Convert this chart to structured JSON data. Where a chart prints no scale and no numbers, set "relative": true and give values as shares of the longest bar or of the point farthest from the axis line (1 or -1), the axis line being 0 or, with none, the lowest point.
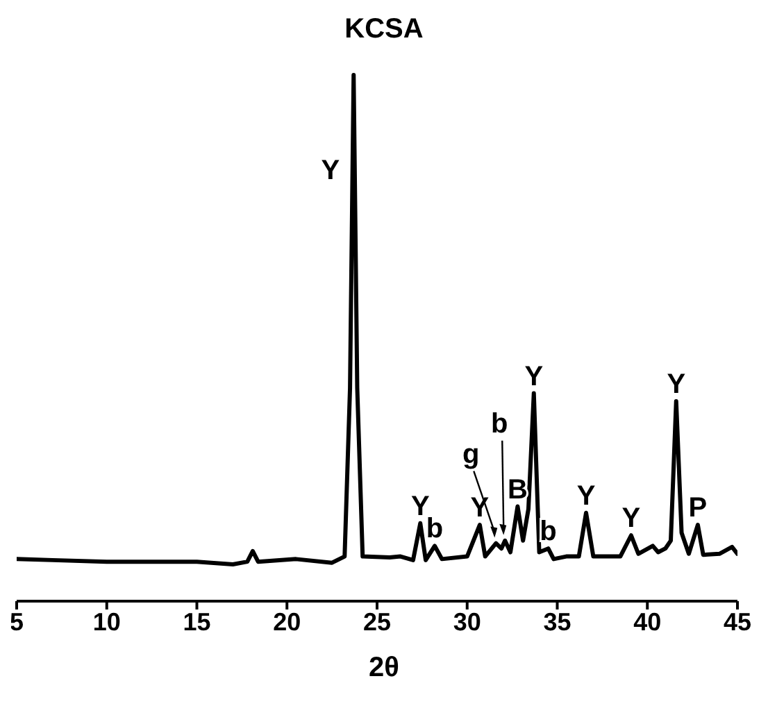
{
  "chart_data": {
    "type": "line",
    "title": "KCSA",
    "xlabel": "2θ",
    "relative": true,
    "tick_labels": "x",
    "marker": "none",
    "line_style": "solid",
    "grid": false,
    "legend": false,
    "x": [
      5,
      7,
      10,
      15,
      17,
      17.8,
      18.1,
      18.4,
      20.5,
      22.5,
      23.2,
      23.5,
      23.7,
      23.9,
      24.2,
      25.7,
      26.3,
      27.0,
      27.4,
      27.7,
      28.2,
      28.6,
      30.0,
      30.7,
      31.0,
      31.6,
      31.9,
      32.1,
      32.4,
      32.8,
      33.1,
      33.4,
      33.7,
      34.0,
      34.5,
      34.8,
      35.5,
      36.2,
      36.6,
      37.0,
      38.5,
      39.1,
      39.5,
      40.3,
      40.6,
      41.0,
      41.3,
      41.6,
      41.9,
      42.3,
      42.8,
      43.1,
      44.0,
      44.7,
      45
    ],
    "series": [
      {
        "color": "#000000",
        "values": [
          0.08,
          0.078,
          0.075,
          0.075,
          0.07,
          0.075,
          0.095,
          0.075,
          0.08,
          0.073,
          0.085,
          0.405,
          1,
          0.405,
          0.085,
          0.083,
          0.085,
          0.078,
          0.148,
          0.078,
          0.105,
          0.08,
          0.085,
          0.145,
          0.085,
          0.11,
          0.1,
          0.115,
          0.093,
          0.18,
          0.115,
          0.175,
          0.395,
          0.093,
          0.1,
          0.08,
          0.085,
          0.085,
          0.168,
          0.085,
          0.085,
          0.125,
          0.09,
          0.105,
          0.093,
          0.1,
          0.115,
          0.38,
          0.13,
          0.09,
          0.145,
          0.088,
          0.09,
          0.103,
          0.09
        ]
      }
    ],
    "xlim": [
      5,
      45
    ],
    "xticks": [
      5,
      10,
      15,
      20,
      25,
      30,
      35,
      40,
      45
    ],
    "annotations": [
      {
        "text": "Y",
        "x": 23.7,
        "y": 1
      },
      {
        "text": "Y",
        "x": 27.4,
        "y": 0.148
      },
      {
        "text": "b",
        "x": 28.2,
        "y": 0.105
      },
      {
        "text": "Y",
        "x": 30.7,
        "y": 0.145
      },
      {
        "text": "g",
        "x": 31.6,
        "y": 0.11
      },
      {
        "text": "b",
        "x": 32.1,
        "y": 0.115
      },
      {
        "text": "B",
        "x": 32.8,
        "y": 0.18
      },
      {
        "text": "Y",
        "x": 33.7,
        "y": 0.395
      },
      {
        "text": "b",
        "x": 34.5,
        "y": 0.1
      },
      {
        "text": "Y",
        "x": 36.6,
        "y": 0.168
      },
      {
        "text": "Y",
        "x": 39.1,
        "y": 0.125
      },
      {
        "text": "Y",
        "x": 41.6,
        "y": 0.38
      },
      {
        "text": "P",
        "x": 42.8,
        "y": 0.145
      }
    ]
  }
}
